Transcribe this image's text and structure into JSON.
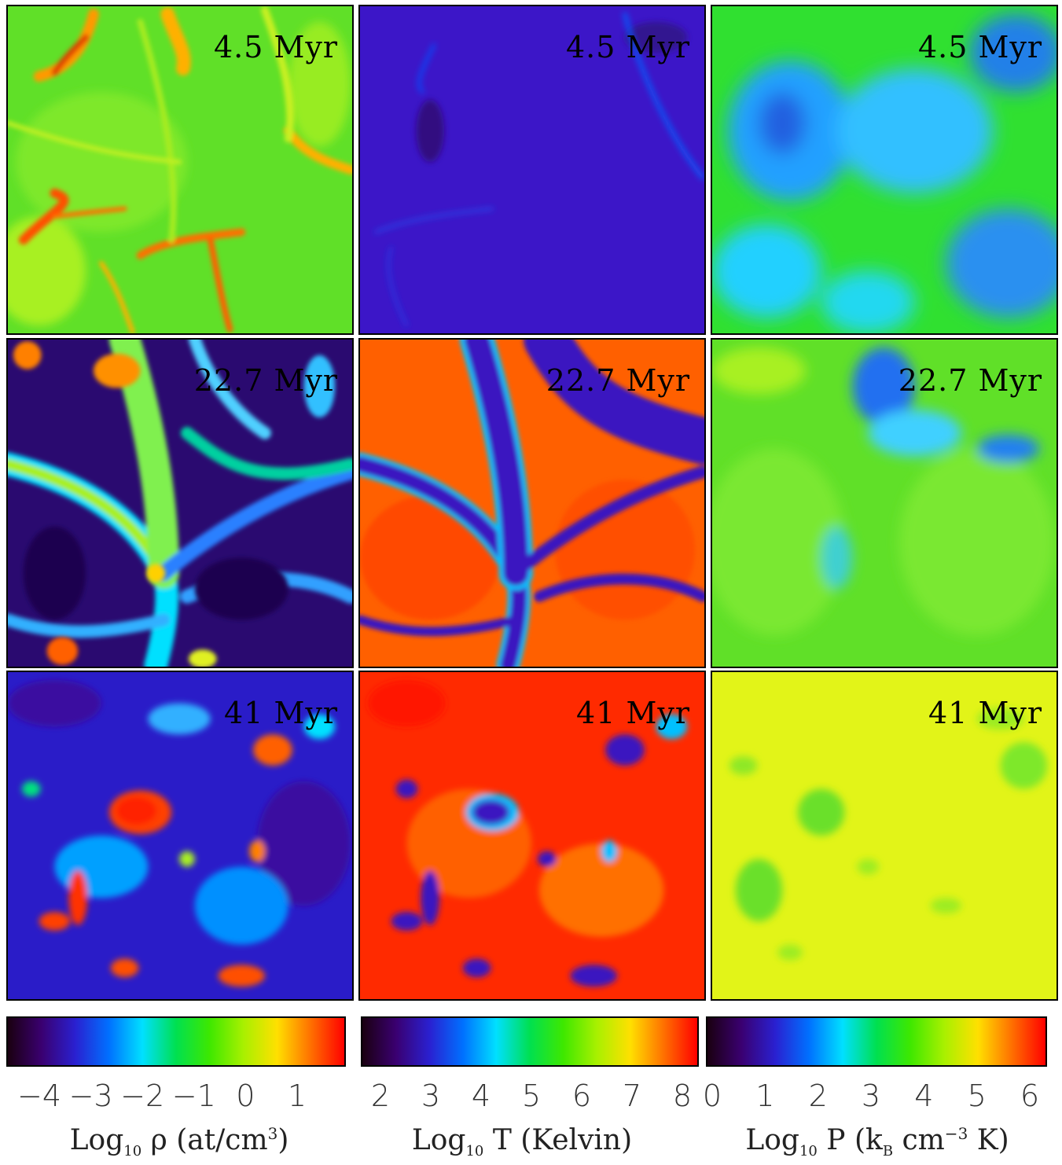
{
  "panels": {
    "r1c1": {
      "time": "4.5 Myr"
    },
    "r1c2": {
      "time": "4.5 Myr"
    },
    "r1c3": {
      "time": "4.5 Myr"
    },
    "r2c1": {
      "time": "22.7 Myr"
    },
    "r2c2": {
      "time": "22.7 Myr"
    },
    "r2c3": {
      "time": "22.7 Myr"
    },
    "r3c1": {
      "time": "41 Myr"
    },
    "r3c2": {
      "time": "41 Myr"
    },
    "r3c3": {
      "time": "41 Myr"
    }
  },
  "colorbars": {
    "density": {
      "ticks": [
        "−4",
        "−3",
        "−2",
        "−1",
        "0",
        "1"
      ],
      "label_prefix": "Log",
      "label_sub": "10",
      "label_rest": " ρ (at/cm",
      "label_sup": "3",
      "label_end": ")"
    },
    "temperature": {
      "ticks": [
        "2",
        "3",
        "4",
        "5",
        "6",
        "7",
        "8"
      ],
      "label_prefix": "Log",
      "label_sub": "10",
      "label_rest": " T (Kelvin)"
    },
    "pressure": {
      "ticks": [
        "0",
        "1",
        "2",
        "3",
        "4",
        "5",
        "6"
      ],
      "label_prefix": "Log",
      "label_sub": "10",
      "label_rest": " P (k",
      "label_sub2": "B",
      "label_mid": " cm",
      "label_sup": "−3",
      "label_end": " K)"
    }
  },
  "colors": {
    "colormap": [
      "#1a0010",
      "#3a0070",
      "#2a20d0",
      "#0070ff",
      "#00e0ff",
      "#00e050",
      "#3ee800",
      "#a8f000",
      "#ffe000",
      "#ff7000",
      "#ff0000"
    ]
  }
}
